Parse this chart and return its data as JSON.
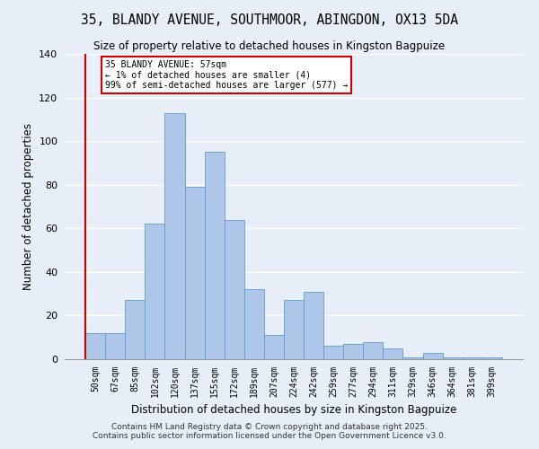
{
  "title_line1": "35, BLANDY AVENUE, SOUTHMOOR, ABINGDON, OX13 5DA",
  "title_line2": "Size of property relative to detached houses in Kingston Bagpuize",
  "xlabel": "Distribution of detached houses by size in Kingston Bagpuize",
  "ylabel": "Number of detached properties",
  "categories": [
    "50sqm",
    "67sqm",
    "85sqm",
    "102sqm",
    "120sqm",
    "137sqm",
    "155sqm",
    "172sqm",
    "189sqm",
    "207sqm",
    "224sqm",
    "242sqm",
    "259sqm",
    "277sqm",
    "294sqm",
    "311sqm",
    "329sqm",
    "346sqm",
    "364sqm",
    "381sqm",
    "399sqm"
  ],
  "values": [
    12,
    12,
    27,
    62,
    113,
    79,
    95,
    64,
    32,
    11,
    27,
    31,
    6,
    7,
    8,
    5,
    1,
    3,
    1,
    1,
    1
  ],
  "bar_color": "#aec6e8",
  "bar_edge_color": "#5b9bd5",
  "background_color": "#e8eef8",
  "grid_color": "#ffffff",
  "annotation_text": "35 BLANDY AVENUE: 57sqm\n← 1% of detached houses are smaller (4)\n99% of semi-detached houses are larger (577) →",
  "annotation_box_color": "#ffffff",
  "annotation_box_edge": "#cc0000",
  "vline_color": "#cc0000",
  "ylim": [
    0,
    140
  ],
  "yticks": [
    0,
    20,
    40,
    60,
    80,
    100,
    120,
    140
  ],
  "footnote": "Contains HM Land Registry data © Crown copyright and database right 2025.\nContains public sector information licensed under the Open Government Licence v3.0."
}
